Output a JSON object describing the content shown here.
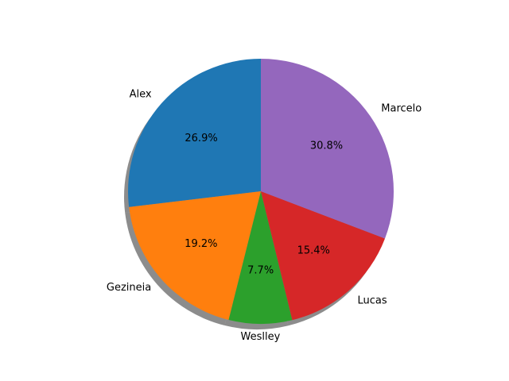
{
  "chart_data": {
    "type": "pie",
    "title": "",
    "labels": [
      "Alex",
      "Gezineia",
      "Weslley",
      "Lucas",
      "Marcelo"
    ],
    "percentages": [
      26.9,
      19.2,
      7.7,
      15.4,
      30.8
    ],
    "percent_labels": [
      "26.9%",
      "19.2%",
      "7.7%",
      "15.4%",
      "30.8%"
    ],
    "colors": [
      "#1f77b4",
      "#ff7f0e",
      "#2ca02c",
      "#d62728",
      "#9467bd"
    ],
    "start_angle": 90,
    "direction": "counterclockwise",
    "shadow": true
  }
}
